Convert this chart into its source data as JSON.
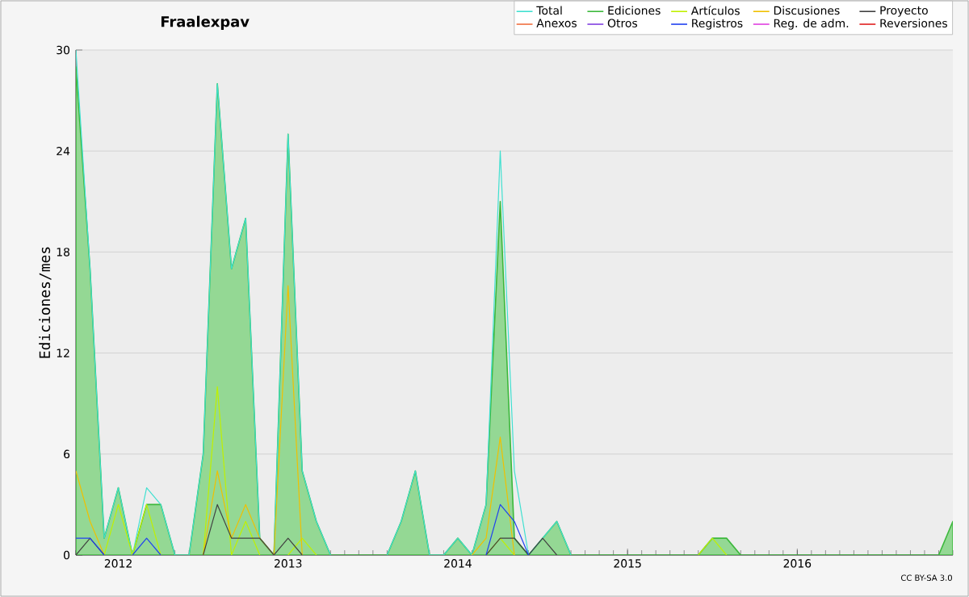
{
  "chart_data": {
    "type": "line",
    "title": "Fraalexpav",
    "ylabel": "Ediciones/mes",
    "x": [
      "2011-10",
      "2011-11",
      "2011-12",
      "2012-01",
      "2012-02",
      "2012-03",
      "2012-04",
      "2012-05",
      "2012-06",
      "2012-07",
      "2012-08",
      "2012-09",
      "2012-10",
      "2012-11",
      "2012-12",
      "2013-01",
      "2013-02",
      "2013-03",
      "2013-04",
      "2013-05",
      "2013-06",
      "2013-07",
      "2013-08",
      "2013-09",
      "2013-10",
      "2013-11",
      "2013-12",
      "2014-01",
      "2014-02",
      "2014-03",
      "2014-04",
      "2014-05",
      "2014-06",
      "2014-07",
      "2014-08",
      "2014-09",
      "2014-10",
      "2014-11",
      "2014-12",
      "2015-01",
      "2015-02",
      "2015-03",
      "2015-04",
      "2015-05",
      "2015-06",
      "2015-07",
      "2015-08",
      "2015-09",
      "2015-10",
      "2015-11",
      "2015-12",
      "2016-01",
      "2016-02",
      "2016-03",
      "2016-04",
      "2016-05",
      "2016-06",
      "2016-07",
      "2016-08",
      "2016-09",
      "2016-10",
      "2016-11",
      "2016-12"
    ],
    "xlim": [
      "2011-10",
      "2016-12"
    ],
    "xticks": [
      {
        "value": "2012-01",
        "label": "2012"
      },
      {
        "value": "2013-01",
        "label": "2013"
      },
      {
        "value": "2014-01",
        "label": "2014"
      },
      {
        "value": "2015-01",
        "label": "2015"
      },
      {
        "value": "2016-01",
        "label": "2016"
      }
    ],
    "ylim": [
      0,
      30
    ],
    "yticks": [
      0,
      6,
      12,
      18,
      24,
      30
    ],
    "grid": "y",
    "legend": "top right",
    "annotations": [
      "CC BY-SA 3.0"
    ],
    "series": [
      {
        "name": "Total",
        "color": "#40e0d0",
        "values": [
          30,
          17,
          1,
          4,
          0,
          4,
          3,
          0,
          0,
          6,
          28,
          17,
          20,
          1,
          0,
          25,
          5,
          2,
          0,
          null,
          null,
          null,
          0,
          2,
          5,
          0,
          0,
          1,
          0,
          3,
          24,
          5,
          0,
          1,
          2,
          0,
          null,
          null,
          null,
          null,
          null,
          null,
          null,
          null,
          null,
          null,
          null,
          null,
          null,
          null,
          null,
          null,
          null,
          null,
          null,
          null,
          null,
          null,
          null,
          null,
          null,
          null,
          null
        ]
      },
      {
        "name": "Ediciones",
        "type": "area",
        "color": "#3cb83c",
        "values": [
          29,
          17,
          1,
          4,
          0,
          3,
          3,
          0,
          0,
          6,
          28,
          17,
          20,
          1,
          0,
          25,
          5,
          2,
          0,
          0,
          0,
          0,
          0,
          2,
          5,
          0,
          0,
          1,
          0,
          3,
          21,
          1,
          0,
          1,
          2,
          0,
          0,
          0,
          0,
          0,
          0,
          0,
          0,
          0,
          0,
          1,
          1,
          0,
          0,
          0,
          0,
          0,
          0,
          0,
          0,
          0,
          0,
          0,
          0,
          0,
          0,
          0,
          2
        ]
      },
      {
        "name": "Artículos",
        "color": "#c0f000",
        "values": [
          null,
          null,
          0,
          3,
          0,
          3,
          0,
          null,
          null,
          0,
          10,
          0,
          2,
          0,
          null,
          0,
          1,
          0,
          null,
          null,
          null,
          null,
          null,
          null,
          null,
          null,
          null,
          null,
          null,
          0,
          1,
          0,
          null,
          null,
          null,
          null,
          null,
          null,
          null,
          null,
          null,
          null,
          null,
          null,
          0,
          1,
          0,
          null,
          null,
          null,
          null,
          null,
          null,
          null,
          null,
          null,
          null,
          null,
          null,
          null,
          null,
          null,
          null
        ]
      },
      {
        "name": "Discusiones",
        "color": "#f0c000",
        "values": [
          5,
          2,
          0,
          null,
          null,
          null,
          null,
          null,
          null,
          0,
          5,
          1,
          3,
          1,
          0,
          16,
          0,
          null,
          null,
          null,
          null,
          null,
          null,
          null,
          null,
          null,
          null,
          null,
          0,
          1,
          7,
          0,
          null,
          null,
          null,
          null,
          null,
          null,
          null,
          null,
          null,
          null,
          null,
          null,
          null,
          null,
          null,
          null,
          null,
          null,
          null,
          null,
          null,
          null,
          null,
          null,
          null,
          null,
          null,
          null,
          null,
          null,
          null
        ]
      },
      {
        "name": "Proyecto",
        "color": "#404040",
        "values": [
          0,
          1,
          0,
          null,
          null,
          null,
          null,
          null,
          null,
          0,
          3,
          1,
          1,
          1,
          0,
          1,
          0,
          null,
          null,
          null,
          null,
          null,
          null,
          null,
          null,
          null,
          null,
          null,
          null,
          0,
          1,
          1,
          0,
          1,
          0,
          null,
          null,
          null,
          null,
          null,
          null,
          null,
          null,
          null,
          null,
          null,
          null,
          null,
          null,
          null,
          null,
          null,
          null,
          null,
          null,
          null,
          null,
          null,
          null,
          null,
          null,
          null,
          null
        ]
      },
      {
        "name": "Anexos",
        "color": "#f07040",
        "values": [
          null,
          null,
          null,
          null,
          null,
          null,
          null,
          null,
          null,
          null,
          null,
          null,
          null,
          null,
          null,
          null,
          null,
          null,
          null,
          null,
          null,
          null,
          null,
          null,
          null,
          null,
          null,
          null,
          null,
          null,
          null,
          null,
          null,
          null,
          null,
          null,
          null,
          null,
          null,
          null,
          null,
          null,
          null,
          null,
          null,
          null,
          null,
          null,
          null,
          null,
          null,
          null,
          null,
          null,
          null,
          null,
          null,
          null,
          null,
          null,
          null,
          null,
          null
        ]
      },
      {
        "name": "Otros",
        "color": "#8040e0",
        "values": [
          null,
          null,
          null,
          null,
          null,
          null,
          null,
          null,
          null,
          null,
          null,
          null,
          null,
          null,
          null,
          null,
          null,
          null,
          null,
          null,
          null,
          null,
          null,
          null,
          null,
          null,
          null,
          null,
          null,
          null,
          null,
          null,
          null,
          null,
          null,
          null,
          null,
          null,
          null,
          null,
          null,
          null,
          null,
          null,
          null,
          null,
          null,
          null,
          null,
          null,
          null,
          null,
          null,
          null,
          null,
          null,
          null,
          null,
          null,
          null,
          null,
          null,
          null
        ]
      },
      {
        "name": "Registros",
        "color": "#2040f0",
        "values": [
          1,
          1,
          0,
          null,
          0,
          1,
          0,
          null,
          null,
          null,
          null,
          null,
          null,
          null,
          null,
          null,
          null,
          null,
          null,
          null,
          null,
          null,
          null,
          null,
          null,
          null,
          null,
          null,
          null,
          0,
          3,
          2,
          0,
          null,
          null,
          null,
          null,
          null,
          null,
          null,
          null,
          null,
          null,
          null,
          null,
          null,
          null,
          null,
          null,
          null,
          null,
          null,
          null,
          null,
          null,
          null,
          null,
          null,
          null,
          null,
          null,
          null,
          null
        ]
      },
      {
        "name": "Reg. de adm.",
        "color": "#e040e0",
        "values": [
          null,
          null,
          null,
          null,
          null,
          null,
          null,
          null,
          null,
          null,
          null,
          null,
          null,
          null,
          null,
          null,
          null,
          null,
          null,
          null,
          null,
          null,
          null,
          null,
          null,
          null,
          null,
          null,
          null,
          null,
          null,
          null,
          null,
          null,
          null,
          null,
          null,
          null,
          null,
          null,
          null,
          null,
          null,
          null,
          null,
          null,
          null,
          null,
          null,
          null,
          null,
          null,
          null,
          null,
          null,
          null,
          null,
          null,
          null,
          null,
          null,
          null,
          null
        ]
      },
      {
        "name": "Reversiones",
        "color": "#e02020",
        "values": [
          null,
          null,
          null,
          null,
          null,
          null,
          null,
          null,
          null,
          null,
          null,
          null,
          null,
          null,
          null,
          null,
          null,
          null,
          null,
          null,
          null,
          null,
          null,
          null,
          null,
          null,
          null,
          null,
          null,
          null,
          null,
          null,
          null,
          null,
          null,
          null,
          null,
          null,
          null,
          null,
          null,
          null,
          null,
          null,
          null,
          null,
          null,
          null,
          null,
          null,
          null,
          null,
          null,
          null,
          null,
          null,
          null,
          null,
          null,
          null,
          null,
          null,
          null
        ]
      }
    ]
  }
}
